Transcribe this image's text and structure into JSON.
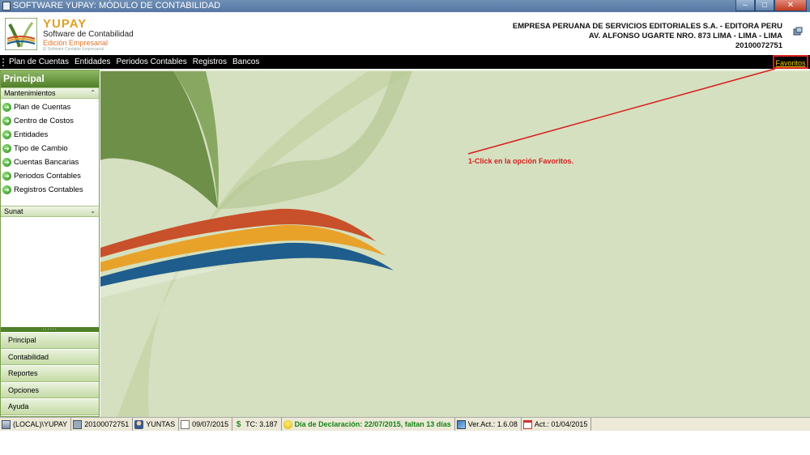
{
  "window": {
    "title": "SOFTWARE YUPAY: MÓDULO DE CONTABILIDAD",
    "controls": [
      "minimize",
      "maximize",
      "close"
    ]
  },
  "header": {
    "brand_name": "YUPAY",
    "brand_subtitle": "Software de Contabilidad",
    "brand_edition": "Edición Empresarial",
    "brand_tagline": "El Software Contable Empresarial",
    "company_name": "EMPRESA PERUANA DE SERVICIOS EDITORIALES S.A. - EDITORA PERU",
    "company_address": "AV. ALFONSO UGARTE NRO. 873 LIMA - LIMA - LIMA",
    "company_ruc": "20100072751"
  },
  "menubar": {
    "items": [
      "Plan de Cuentas",
      "Entidades",
      "Periodos Contables",
      "Registros",
      "Bancos"
    ],
    "favorites": "Favoritos"
  },
  "sidebar": {
    "title": "Principal",
    "group1_title": "Mantenimientos",
    "group1_items": [
      "Plan de Cuentas",
      "Centro de Costos",
      "Entidades",
      "Tipo de Cambio",
      "Cuentas Bancarias",
      "Periodos Contables",
      "Registros Contables"
    ],
    "group2_title": "Sunat",
    "splitter": "......",
    "nav_buttons": [
      "Principal",
      "Contabilidad",
      "Reportes",
      "Opciones",
      "Ayuda"
    ]
  },
  "main": {
    "annotation": "1-Click en la opción Favoritos.",
    "accent_color": "#d81e1e",
    "background_color": "#d5e0c0"
  },
  "statusbar": {
    "server": "(LOCAL)\\YUPAY",
    "ruc": "20100072751",
    "user": "YUNTAS",
    "date": "09/07/2015",
    "tc": "TC: 3.187",
    "declaration": "Día de Declaración: 22/07/2015, faltan 13 días",
    "version": "Ver.Act.: 1.6.08",
    "updated": "Act.: 01/04/2015"
  }
}
